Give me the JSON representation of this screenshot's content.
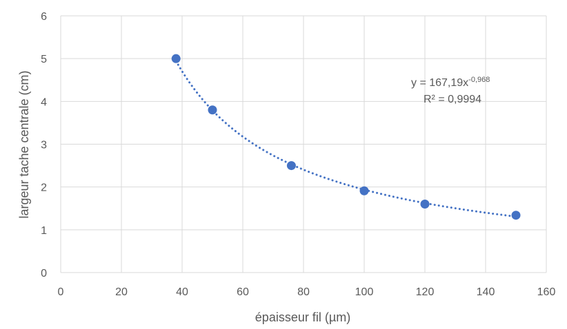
{
  "chart_data": {
    "type": "scatter",
    "title": "",
    "xlabel": "épaisseur fil (µm)",
    "ylabel": "largeur tache centrale (cm)",
    "xlim": [
      0,
      160
    ],
    "ylim": [
      0,
      6
    ],
    "x_ticks": [
      "0",
      "20",
      "40",
      "60",
      "80",
      "100",
      "120",
      "140",
      "160"
    ],
    "y_ticks": [
      "0",
      "1",
      "2",
      "3",
      "4",
      "5",
      "6"
    ],
    "grid": true,
    "legend": "none",
    "colors": {
      "marker": "#4472c4",
      "trendline": "#4472c4",
      "grid": "#d9d9d9",
      "text": "#595959"
    },
    "series": [
      {
        "x": [
          38,
          50,
          76,
          100,
          120,
          150
        ],
        "y": [
          5.0,
          3.8,
          2.5,
          1.91,
          1.6,
          1.34
        ]
      }
    ],
    "trendline": {
      "type": "power",
      "a": 167.19,
      "b": -0.968,
      "x_range": [
        38,
        150
      ],
      "equation_main": "y = 167,19x",
      "equation_exp": "-0,968",
      "r2_label": "R² = 0,9994"
    }
  }
}
